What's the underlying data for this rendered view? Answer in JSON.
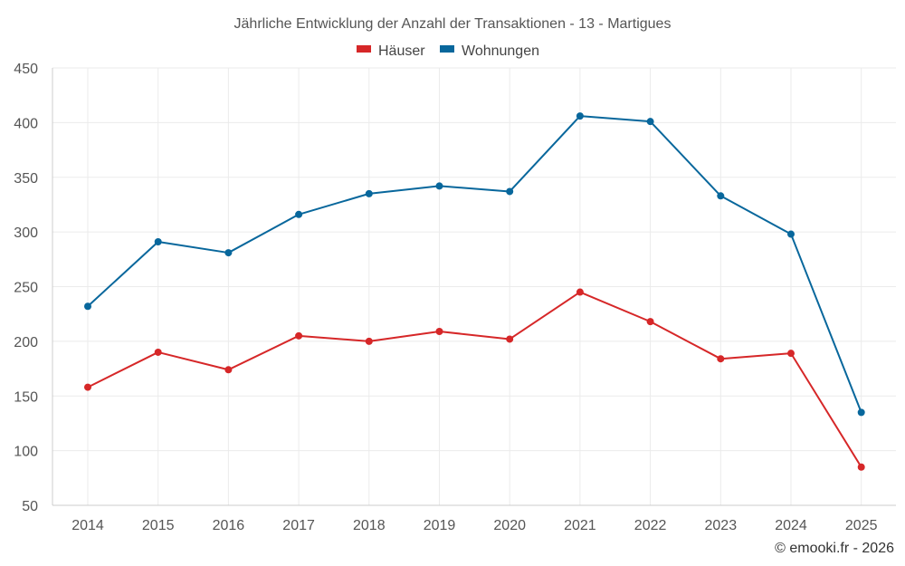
{
  "chart_data": {
    "type": "line",
    "title": "Jährliche Entwicklung der Anzahl der Transaktionen - 13 - Martigues",
    "xlabel": "",
    "ylabel": "",
    "categories": [
      "2014",
      "2015",
      "2016",
      "2017",
      "2018",
      "2019",
      "2020",
      "2021",
      "2022",
      "2023",
      "2024",
      "2025"
    ],
    "ylim": [
      50,
      450
    ],
    "yticks": [
      50,
      100,
      150,
      200,
      250,
      300,
      350,
      400,
      450
    ],
    "grid": true,
    "legend_position": "top-center",
    "series": [
      {
        "name": "Häuser",
        "color": "#d62728",
        "values": [
          158,
          190,
          174,
          205,
          200,
          209,
          202,
          245,
          218,
          184,
          189,
          85
        ]
      },
      {
        "name": "Wohnungen",
        "color": "#08679c",
        "values": [
          232,
          291,
          281,
          316,
          335,
          342,
          337,
          406,
          401,
          333,
          298,
          135
        ]
      }
    ]
  },
  "credit": "© emooki.fr - 2026"
}
